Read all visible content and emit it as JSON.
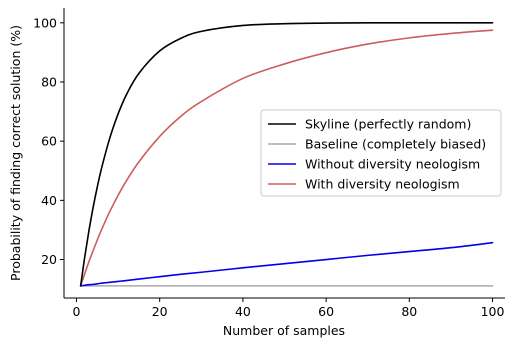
{
  "chart_data": {
    "type": "line",
    "title": "",
    "xlabel": "Number of samples",
    "ylabel": "Probability of finding correct solution (%)",
    "xlim": [
      -3,
      103
    ],
    "ylim": [
      7,
      105
    ],
    "xticks": [
      0,
      20,
      40,
      60,
      80,
      100
    ],
    "yticks": [
      20,
      40,
      60,
      80,
      100
    ],
    "grid": false,
    "legend_position": "center-right",
    "x": [
      1,
      2,
      3,
      4,
      5,
      6,
      8,
      10,
      12,
      15,
      20,
      25,
      30,
      40,
      50,
      60,
      70,
      80,
      90,
      100
    ],
    "series": [
      {
        "name": "Skyline (perfectly random)",
        "color": "#000000",
        "values": [
          11.1,
          21.0,
          29.8,
          37.6,
          44.5,
          50.7,
          61.0,
          69.2,
          75.7,
          82.9,
          90.5,
          94.7,
          97.1,
          99.1,
          99.7,
          99.9,
          100.0,
          100.0,
          100.0,
          100.0
        ]
      },
      {
        "name": "Baseline (completely biased)",
        "color": "#aaaaaa",
        "values": [
          11.1,
          11.1,
          11.1,
          11.1,
          11.1,
          11.1,
          11.1,
          11.1,
          11.1,
          11.1,
          11.1,
          11.1,
          11.1,
          11.1,
          11.1,
          11.1,
          11.1,
          11.1,
          11.1,
          11.1
        ]
      },
      {
        "name": "Without diversity neologism",
        "color": "#0000ee",
        "values": [
          11.1,
          11.3,
          11.5,
          11.6,
          11.8,
          12.0,
          12.3,
          12.6,
          12.9,
          13.4,
          14.2,
          15.0,
          15.7,
          17.2,
          18.6,
          20.0,
          21.4,
          22.7,
          24.0,
          25.7
        ]
      },
      {
        "name": "With diversity neologism",
        "color": "#cd5c5c",
        "values": [
          11.1,
          15.3,
          19.3,
          23.0,
          26.6,
          30.0,
          36.2,
          41.7,
          46.6,
          53.0,
          61.6,
          68.3,
          73.4,
          81.2,
          86.1,
          89.9,
          92.8,
          94.9,
          96.4,
          97.5
        ]
      }
    ]
  }
}
